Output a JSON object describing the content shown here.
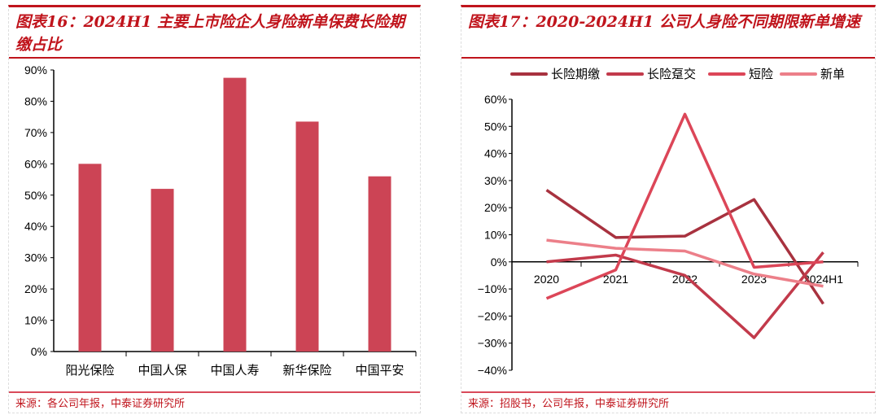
{
  "left": {
    "title": "图表16：2024H1 主要上市险企人身险新单保费长险期缴占比",
    "source": "来源：各公司年报，中泰证券研究所"
  },
  "right": {
    "title": "图表17：2020-2024H1 公司人身险不同期限新单增速",
    "source": "来源：招股书，公司年报，中泰证券研究所"
  },
  "chart_data": [
    {
      "type": "bar",
      "categories": [
        "阳光保险",
        "中国人保",
        "中国人寿",
        "新华保险",
        "中国平安"
      ],
      "values": [
        60,
        52,
        87.5,
        73.5,
        56
      ],
      "ylim": [
        0,
        90
      ],
      "yticks": [
        "0%",
        "10%",
        "20%",
        "30%",
        "40%",
        "50%",
        "60%",
        "70%",
        "80%",
        "90%"
      ],
      "color": "#cc4455",
      "grid": false
    },
    {
      "type": "line",
      "categories": [
        "2020",
        "2021",
        "2022",
        "2023",
        "2024H1"
      ],
      "ylim": [
        -40,
        60
      ],
      "yticks": [
        "-40%",
        "-30%",
        "-20%",
        "-10%",
        "0%",
        "10%",
        "20%",
        "30%",
        "40%",
        "50%",
        "60%"
      ],
      "legend": "top",
      "grid": false,
      "series": [
        {
          "name": "长险期缴",
          "values": [
            26.5,
            9,
            9.5,
            23,
            -15.5
          ],
          "color": "#a8323f"
        },
        {
          "name": "长险趸交",
          "values": [
            0,
            2.5,
            -5,
            -28,
            3.5
          ],
          "color": "#c23a4b"
        },
        {
          "name": "短险",
          "values": [
            -13.5,
            -3,
            54.5,
            -2,
            0
          ],
          "color": "#dc4658"
        },
        {
          "name": "新单",
          "values": [
            8,
            5,
            4,
            -4.5,
            -9
          ],
          "color": "#ec7f89"
        }
      ]
    }
  ]
}
